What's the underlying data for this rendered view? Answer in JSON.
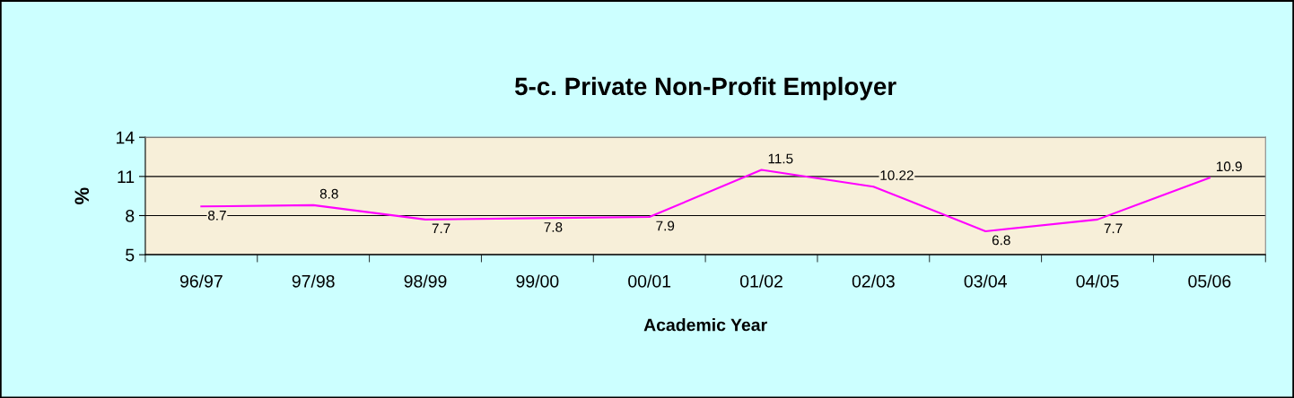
{
  "chart_data": {
    "type": "line",
    "title": "5-c. Private Non-Profit Employer",
    "xlabel": "Academic Year",
    "ylabel": "%",
    "categories": [
      "96/97",
      "97/98",
      "98/99",
      "99/00",
      "00/01",
      "01/02",
      "02/03",
      "03/04",
      "04/05",
      "05/06"
    ],
    "series": [
      {
        "color": "#ff00ff",
        "values": [
          8.7,
          8.8,
          7.7,
          7.8,
          7.9,
          11.5,
          10.22,
          6.8,
          7.7,
          10.9
        ]
      }
    ],
    "ylim": [
      5,
      14
    ],
    "yticks": [
      5,
      8,
      11,
      14
    ],
    "grid": "y",
    "data_labels": true,
    "legend": false,
    "marker": "none",
    "line_style": "solid"
  }
}
